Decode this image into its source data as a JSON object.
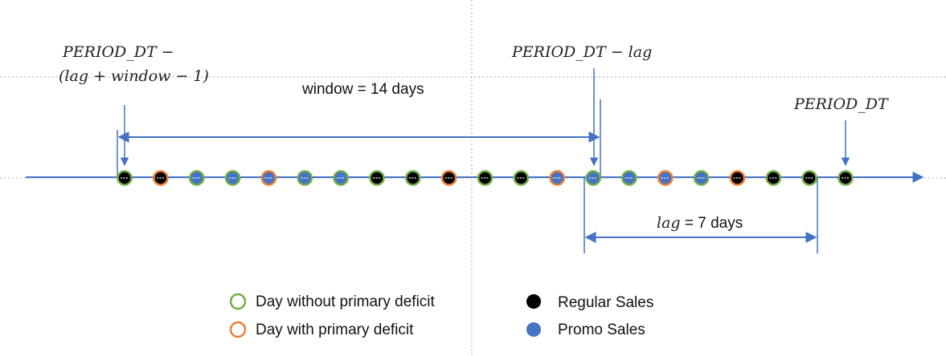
{
  "colors": {
    "axis": "#4472c4",
    "regular": "#000000",
    "promo": "#4472c4",
    "no_deficit": "#70ad47",
    "deficit": "#ed7d31",
    "guide": "#a6a6a6"
  },
  "labels": {
    "start_line1": "PERIOD_DT  −",
    "start_line2": "(lag + window − 1)",
    "lag_point": "PERIOD_DT  − lag",
    "end_point": "PERIOD_DT",
    "window": "window = 14 days",
    "lag_var": "lag",
    "lag_rest": " = 7 days"
  },
  "days": [
    {
      "fill": "regular",
      "ring": "no_deficit"
    },
    {
      "fill": "regular",
      "ring": "deficit"
    },
    {
      "fill": "promo",
      "ring": "no_deficit"
    },
    {
      "fill": "promo",
      "ring": "no_deficit"
    },
    {
      "fill": "promo",
      "ring": "deficit"
    },
    {
      "fill": "promo",
      "ring": "no_deficit"
    },
    {
      "fill": "promo",
      "ring": "no_deficit"
    },
    {
      "fill": "regular",
      "ring": "no_deficit"
    },
    {
      "fill": "regular",
      "ring": "no_deficit"
    },
    {
      "fill": "regular",
      "ring": "deficit"
    },
    {
      "fill": "regular",
      "ring": "no_deficit"
    },
    {
      "fill": "regular",
      "ring": "no_deficit"
    },
    {
      "fill": "promo",
      "ring": "deficit"
    },
    {
      "fill": "promo",
      "ring": "no_deficit"
    },
    {
      "fill": "promo",
      "ring": "no_deficit"
    },
    {
      "fill": "promo",
      "ring": "deficit"
    },
    {
      "fill": "promo",
      "ring": "no_deficit"
    },
    {
      "fill": "regular",
      "ring": "deficit"
    },
    {
      "fill": "regular",
      "ring": "no_deficit"
    },
    {
      "fill": "regular",
      "ring": "no_deficit"
    },
    {
      "fill": "regular",
      "ring": "no_deficit"
    }
  ],
  "legend": {
    "no_deficit": "Day without primary deficit",
    "deficit": "Day with primary deficit",
    "regular": "Regular Sales",
    "promo": "Promo Sales"
  }
}
